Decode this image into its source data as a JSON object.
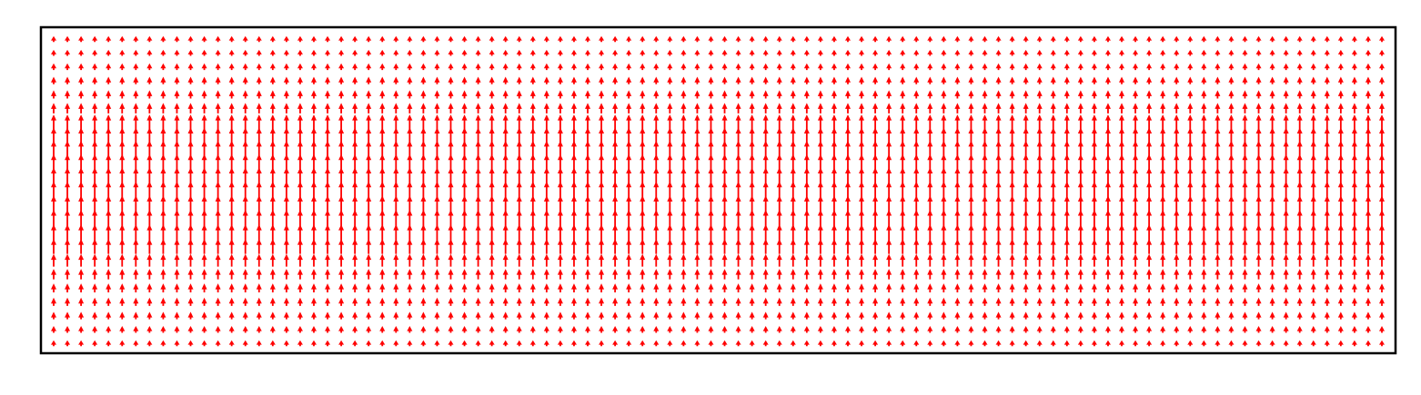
{
  "chart_data": {
    "type": "quiver",
    "title": "",
    "xlabel": "",
    "ylabel": "",
    "grid": false,
    "legend": null,
    "arrow_color": "#ff0000",
    "frame_color": "#000000",
    "background_color": "#ffffff",
    "grid_columns": 98,
    "grid_rows": 23,
    "direction": "up",
    "row_magnitudes": [
      0.4,
      0.45,
      0.5,
      0.55,
      0.6,
      0.7,
      0.85,
      1.0,
      1.1,
      1.2,
      1.25,
      1.3,
      1.3,
      1.25,
      1.2,
      1.1,
      1.0,
      0.7,
      0.55,
      0.5,
      0.45,
      0.4,
      0.4
    ]
  }
}
